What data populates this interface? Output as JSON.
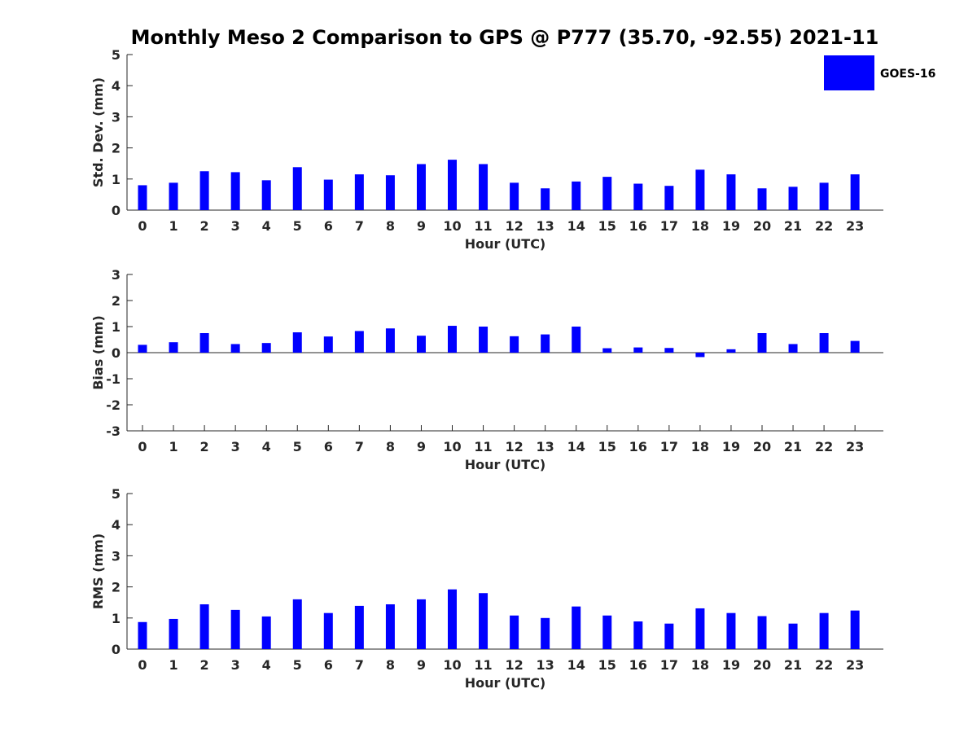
{
  "chart_data": {
    "title": "Monthly Meso 2 Comparison to GPS @ P777 (35.70, -92.55) 2021-11",
    "type": "bar",
    "legend": {
      "label": "GOES-16",
      "color": "#0000ff",
      "position": "top-right"
    },
    "categories": [
      "0",
      "1",
      "2",
      "3",
      "4",
      "5",
      "6",
      "7",
      "8",
      "9",
      "10",
      "11",
      "12",
      "13",
      "14",
      "15",
      "16",
      "17",
      "18",
      "19",
      "20",
      "21",
      "22",
      "23"
    ],
    "panels": [
      {
        "type": "bar",
        "xlabel": "Hour (UTC)",
        "ylabel": "Std. Dev. (mm)",
        "ylim": [
          0,
          5
        ],
        "yticks": [
          "0",
          "1",
          "2",
          "3",
          "4",
          "5"
        ],
        "series": [
          {
            "name": "GOES-16",
            "values": [
              0.8,
              0.88,
              1.25,
              1.22,
              0.96,
              1.38,
              0.98,
              1.15,
              1.12,
              1.48,
              1.62,
              1.48,
              0.88,
              0.7,
              0.92,
              1.07,
              0.85,
              0.78,
              1.3,
              1.15,
              0.7,
              0.75,
              0.88,
              1.15
            ]
          }
        ]
      },
      {
        "type": "bar",
        "xlabel": "Hour (UTC)",
        "ylabel": "Bias (mm)",
        "ylim": [
          -3,
          3
        ],
        "yticks": [
          "-3",
          "-2",
          "-1",
          "0",
          "1",
          "2",
          "3"
        ],
        "series": [
          {
            "name": "GOES-16",
            "values": [
              0.3,
              0.4,
              0.75,
              0.33,
              0.37,
              0.78,
              0.62,
              0.83,
              0.93,
              0.65,
              1.03,
              1.0,
              0.63,
              0.7,
              1.0,
              0.17,
              0.2,
              0.18,
              -0.17,
              0.13,
              0.75,
              0.33,
              0.75,
              0.45
            ]
          }
        ]
      },
      {
        "type": "bar",
        "xlabel": "Hour (UTC)",
        "ylabel": "RMS (mm)",
        "ylim": [
          0,
          5
        ],
        "yticks": [
          "0",
          "1",
          "2",
          "3",
          "4",
          "5"
        ],
        "series": [
          {
            "name": "GOES-16",
            "values": [
              0.87,
              0.97,
              1.44,
              1.26,
              1.05,
              1.6,
              1.16,
              1.39,
              1.44,
              1.6,
              1.92,
              1.8,
              1.08,
              1.0,
              1.37,
              1.08,
              0.89,
              0.82,
              1.31,
              1.16,
              1.06,
              0.82,
              1.16,
              1.24
            ]
          }
        ]
      }
    ]
  }
}
